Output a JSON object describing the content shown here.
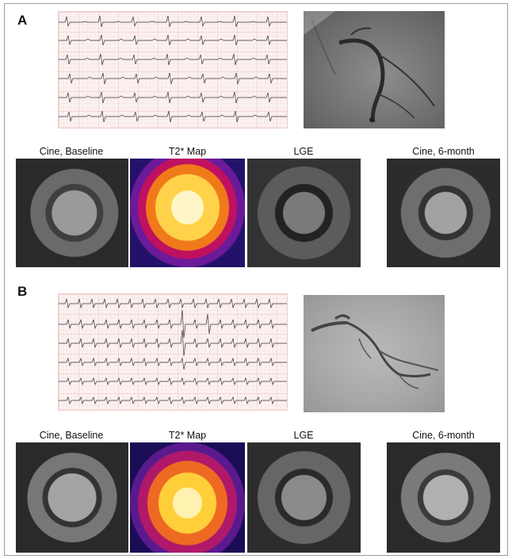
{
  "panels": [
    {
      "letter": "A",
      "labels": {
        "cine_baseline": "Cine, Baseline",
        "t2star_map": "T2* Map",
        "lge": "LGE",
        "cine_6month": "Cine, 6-month"
      }
    },
    {
      "letter": "B",
      "labels": {
        "cine_baseline": "Cine, Baseline",
        "t2star_map": "T2* Map",
        "lge": "LGE",
        "cine_6month": "Cine, 6-month"
      }
    }
  ]
}
